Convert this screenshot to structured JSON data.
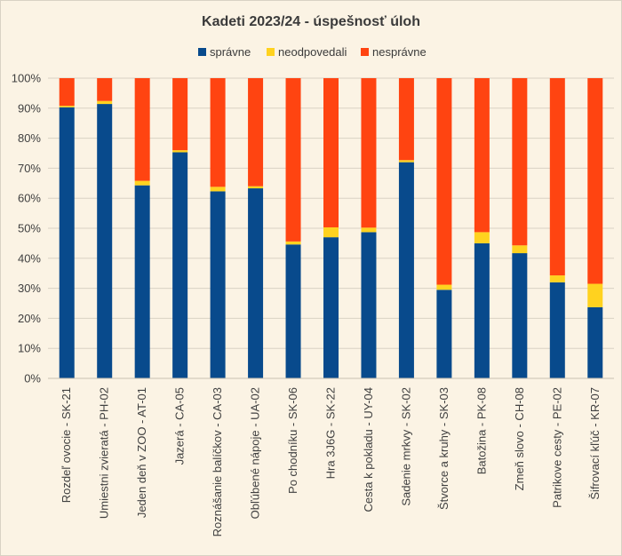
{
  "chart_data": {
    "type": "bar",
    "stacked": true,
    "title": "Kadeti 2023/24 - úspešnosť úloh",
    "xlabel": "",
    "ylabel": "",
    "ylim": [
      0,
      100
    ],
    "yticks": [
      "0%",
      "10%",
      "20%",
      "30%",
      "40%",
      "50%",
      "60%",
      "70%",
      "80%",
      "90%",
      "100%"
    ],
    "legend_position": "top",
    "categories": [
      "Rozdeľ ovocie - SK-21",
      "Umiestni zvieratá - PH-02",
      "Jeden deň v ZOO - AT-01",
      "Jazerá - CA-05",
      "Roznášanie balíčkov - CA-03",
      "Obľúbené nápoje - UA-02",
      "Po chodníku - SK-06",
      "Hra 3J6G - SK-22",
      "Cesta k pokladu - UY-04",
      "Sadenie mrkvy - SK-02",
      "Štvorce a kruhy - SK-03",
      "Batožina - PK-08",
      "Zmeň slovo - CH-08",
      "Patrikove cesty - PE-02",
      "Šifrovací kľúč - KR-07"
    ],
    "series": [
      {
        "name": "správne",
        "color": "#084a8c",
        "values": [
          90.3,
          91.4,
          64.3,
          75.3,
          62.3,
          63.3,
          44.6,
          47.0,
          48.7,
          72.0,
          29.5,
          45.0,
          41.7,
          32.0,
          23.7
        ]
      },
      {
        "name": "neodpovedali",
        "color": "#ffd21f",
        "values": [
          0.5,
          1.0,
          1.5,
          0.7,
          1.5,
          0.7,
          1.0,
          3.3,
          1.5,
          0.7,
          1.7,
          3.7,
          2.6,
          2.3,
          7.8
        ]
      },
      {
        "name": "nesprávne",
        "color": "#ff4411",
        "values": [
          9.2,
          7.6,
          34.2,
          24.0,
          36.2,
          36.0,
          54.4,
          49.7,
          49.8,
          27.3,
          68.8,
          51.3,
          55.7,
          65.7,
          68.5
        ]
      }
    ]
  }
}
